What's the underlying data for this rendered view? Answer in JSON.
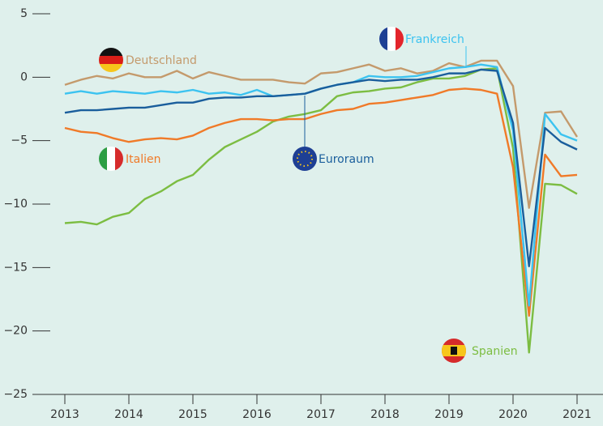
{
  "chart_data": {
    "type": "line",
    "x": [
      2013,
      2013.25,
      2013.5,
      2013.75,
      2014,
      2014.25,
      2014.5,
      2014.75,
      2015,
      2015.25,
      2015.5,
      2015.75,
      2016,
      2016.25,
      2016.5,
      2016.75,
      2017,
      2017.25,
      2017.5,
      2017.75,
      2018,
      2018.25,
      2018.5,
      2018.75,
      2019,
      2019.25,
      2019.5,
      2019.75,
      2020,
      2020.25,
      2020.5,
      2020.75,
      2021
    ],
    "series": [
      {
        "name": "Spanien",
        "color": "#7cbd42",
        "values": [
          -11.5,
          -11.4,
          -11.6,
          -11.0,
          -10.7,
          -9.6,
          -9.0,
          -8.2,
          -7.7,
          -6.5,
          -5.5,
          -4.9,
          -4.3,
          -3.5,
          -3.1,
          -2.9,
          -2.6,
          -1.5,
          -1.2,
          -1.1,
          -0.9,
          -0.8,
          -0.4,
          -0.1,
          -0.1,
          0.1,
          0.6,
          0.7,
          -5.6,
          -21.7,
          -8.4,
          -8.5,
          -9.2
        ]
      },
      {
        "name": "Italien",
        "color": "#f07a28",
        "values": [
          -4.0,
          -4.3,
          -4.4,
          -4.8,
          -5.1,
          -4.9,
          -4.8,
          -4.9,
          -4.6,
          -4.0,
          -3.6,
          -3.3,
          -3.3,
          -3.4,
          -3.3,
          -3.3,
          -2.9,
          -2.6,
          -2.5,
          -2.1,
          -2.0,
          -1.8,
          -1.6,
          -1.4,
          -1.0,
          -0.9,
          -1.0,
          -1.3,
          -7.1,
          -18.8,
          -6.1,
          -7.8,
          -7.7
        ]
      },
      {
        "name": "Deutschland",
        "color": "#c49a6c",
        "values": [
          -0.6,
          -0.2,
          0.1,
          -0.1,
          0.3,
          0.0,
          0.0,
          0.5,
          -0.1,
          0.4,
          0.1,
          -0.2,
          -0.2,
          -0.2,
          -0.4,
          -0.5,
          0.3,
          0.4,
          0.7,
          1.0,
          0.5,
          0.7,
          0.3,
          0.5,
          1.1,
          0.8,
          1.3,
          1.3,
          -0.7,
          -10.3,
          -2.8,
          -2.7,
          -4.7
        ]
      },
      {
        "name": "Frankreich",
        "color": "#3cc3f0",
        "values": [
          -1.3,
          -1.1,
          -1.3,
          -1.1,
          -1.2,
          -1.3,
          -1.1,
          -1.2,
          -1.0,
          -1.3,
          -1.2,
          -1.4,
          -1.0,
          -1.5,
          -1.4,
          -1.3,
          -0.9,
          -0.6,
          -0.4,
          0.1,
          0.0,
          0.0,
          0.1,
          0.4,
          0.7,
          0.8,
          1.0,
          0.8,
          -4.2,
          -18.0,
          -2.9,
          -4.5,
          -5.0
        ]
      },
      {
        "name": "Euroraum",
        "color": "#1a5e9c",
        "values": [
          -2.8,
          -2.6,
          -2.6,
          -2.5,
          -2.4,
          -2.4,
          -2.2,
          -2.0,
          -2.0,
          -1.7,
          -1.6,
          -1.6,
          -1.5,
          -1.5,
          -1.4,
          -1.3,
          -0.9,
          -0.6,
          -0.4,
          -0.2,
          -0.3,
          -0.2,
          -0.2,
          0.0,
          0.3,
          0.3,
          0.6,
          0.5,
          -3.6,
          -14.9,
          -4.0,
          -5.1,
          -5.7
        ]
      }
    ],
    "xlim": [
      2013,
      2021
    ],
    "xticks": [
      2013,
      2014,
      2015,
      2016,
      2017,
      2018,
      2019,
      2020,
      2021
    ],
    "ylim": [
      -25,
      5
    ],
    "yticks": [
      5,
      0,
      {
        "value": -5,
        "label": "−5"
      },
      {
        "value": -10,
        "label": "−10"
      },
      {
        "value": -15,
        "label": "−15"
      },
      {
        "value": -20,
        "label": "−20"
      },
      {
        "value": -25,
        "label": "−25"
      }
    ],
    "grid": false
  }
}
